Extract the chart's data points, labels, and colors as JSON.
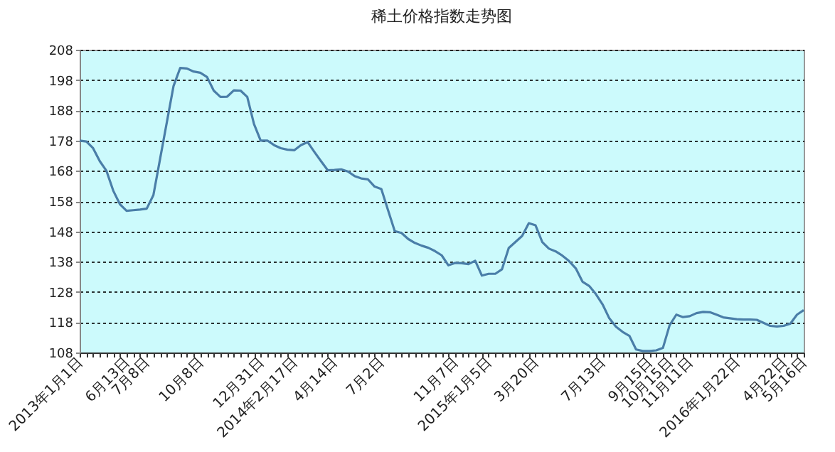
{
  "chart_data": {
    "type": "line",
    "title": "稀土价格指数走势图",
    "categories": [
      "2013年1月1日",
      null,
      null,
      null,
      null,
      null,
      null,
      "6月13日",
      null,
      null,
      "7月8日",
      null,
      null,
      null,
      null,
      null,
      null,
      null,
      "10月8日",
      null,
      null,
      null,
      null,
      null,
      null,
      null,
      null,
      "12月31日",
      null,
      null,
      null,
      null,
      "2014年2月17日",
      null,
      null,
      null,
      null,
      null,
      "4月14日",
      null,
      null,
      null,
      null,
      null,
      null,
      "7月2日",
      null,
      null,
      null,
      null,
      null,
      null,
      null,
      null,
      null,
      null,
      "11月7日",
      null,
      null,
      null,
      null,
      "2015年1月5日",
      null,
      null,
      null,
      null,
      null,
      null,
      "3月20日",
      null,
      null,
      null,
      null,
      null,
      null,
      null,
      null,
      null,
      "7月13日",
      null,
      null,
      null,
      null,
      null,
      null,
      "9月15日",
      null,
      null,
      "10月15日",
      null,
      null,
      "11月11日",
      null,
      null,
      null,
      null,
      null,
      null,
      "2016年1月22日",
      null,
      null,
      null,
      null,
      null,
      null,
      "4月22日",
      null,
      null,
      "5月16日"
    ],
    "series": [
      {
        "color": "#4a7ea8",
        "values": [
          178,
          177.7,
          175.5,
          171.2,
          168,
          161.5,
          157,
          154.8,
          155,
          155.2,
          155.5,
          160,
          172,
          184,
          196,
          202,
          201.8,
          200.8,
          200.4,
          199,
          194.5,
          192.4,
          192.5,
          194.6,
          194.5,
          192.4,
          183.5,
          178,
          178,
          176.5,
          175.5,
          175,
          174.8,
          176.5,
          177.5,
          174.3,
          171.2,
          168.2,
          168.3,
          168.5,
          167.8,
          166.3,
          165.5,
          165.2,
          162.8,
          162,
          155,
          148.1,
          147.5,
          145.5,
          144.2,
          143.3,
          142.6,
          141.5,
          140.1,
          136.8,
          137.6,
          137.5,
          137.2,
          138.3,
          133.4,
          134,
          134,
          135.5,
          142.5,
          144.5,
          146.5,
          150.7,
          150,
          144.5,
          142.3,
          141.4,
          140,
          138.2,
          135.8,
          131.4,
          130,
          127.3,
          123.9,
          119.3,
          116.5,
          114.8,
          113.5,
          109,
          108.5,
          108.5,
          108.7,
          109.5,
          117,
          120.5,
          119.7,
          120,
          121,
          121.4,
          121.3,
          120.5,
          119.6,
          119.3,
          119,
          118.9,
          118.9,
          118.8,
          117.8,
          116.8,
          116.6,
          116.8,
          117.5,
          120.5,
          122
        ]
      }
    ],
    "ylim": [
      108,
      208
    ],
    "yticks": [
      108,
      118,
      128,
      138,
      148,
      158,
      168,
      178,
      188,
      198,
      208
    ],
    "grid": "y",
    "marker": "none",
    "line_style": "solid"
  }
}
